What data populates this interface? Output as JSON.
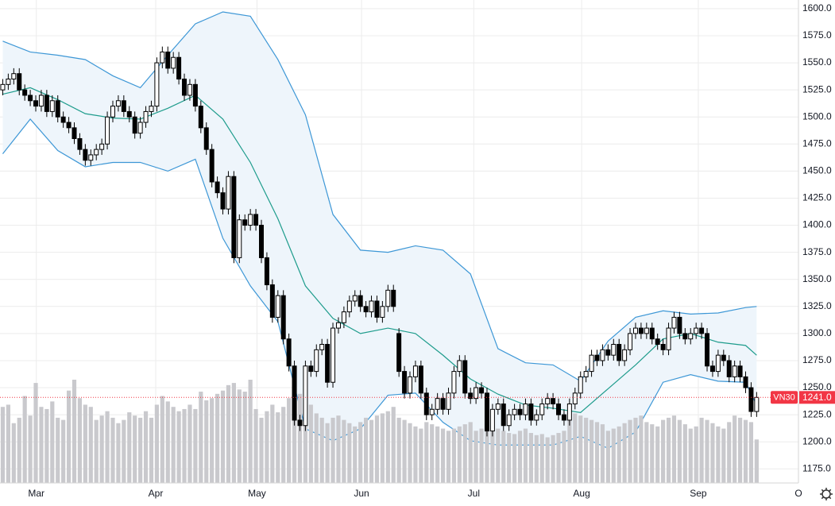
{
  "chart_data": {
    "type": "candlestick",
    "symbol": "VN30",
    "last_price_label": "1241.0",
    "xlim": [
      -0.5,
      144.6
    ],
    "ylim": [
      1162,
      1608
    ],
    "xticks": [
      {
        "value": 6.1,
        "label": "Mar"
      },
      {
        "value": 27.8,
        "label": "Apr"
      },
      {
        "value": 46.2,
        "label": "May"
      },
      {
        "value": 65.2,
        "label": "Jun"
      },
      {
        "value": 85.6,
        "label": "Jul"
      },
      {
        "value": 105.2,
        "label": "Aug"
      },
      {
        "value": 126.4,
        "label": "Sep"
      },
      {
        "value": 144.6,
        "label": "O"
      }
    ],
    "yticks": [
      {
        "value": 1600,
        "label": "1600.0"
      },
      {
        "value": 1575,
        "label": "1575.0"
      },
      {
        "value": 1550,
        "label": "1550.0"
      },
      {
        "value": 1525,
        "label": "1525.0"
      },
      {
        "value": 1500,
        "label": "1500.0"
      },
      {
        "value": 1475,
        "label": "1475.0"
      },
      {
        "value": 1450,
        "label": "1450.0"
      },
      {
        "value": 1425,
        "label": "1425.0"
      },
      {
        "value": 1400,
        "label": "1400.0"
      },
      {
        "value": 1375,
        "label": "1375.0"
      },
      {
        "value": 1350,
        "label": "1350.0"
      },
      {
        "value": 1325,
        "label": "1325.0"
      },
      {
        "value": 1300,
        "label": "1300.0"
      },
      {
        "value": 1275,
        "label": "1275.0"
      },
      {
        "value": 1250,
        "label": "1250.0"
      },
      {
        "value": 1225,
        "label": "1225.0"
      },
      {
        "value": 1200,
        "label": "1200.0"
      },
      {
        "value": 1175,
        "label": "1175.0"
      }
    ],
    "grid": true,
    "up_color": "#ffffff",
    "down_color": "#000000",
    "volume_color": "#c9c9cd",
    "last_price_color": "#f23645",
    "open": [
      1525,
      1530,
      1535,
      1540,
      1525,
      1520,
      1515,
      1510,
      1520,
      1505,
      1515,
      1500,
      1495,
      1490,
      1480,
      1470,
      1460,
      1465,
      1470,
      1475,
      1500,
      1510,
      1515,
      1505,
      1500,
      1485,
      1495,
      1505,
      1510,
      1550,
      1560,
      1545,
      1555,
      1535,
      1520,
      1530,
      1510,
      1490,
      1470,
      1440,
      1430,
      1415,
      1445,
      1370,
      1405,
      1400,
      1410,
      1400,
      1370,
      1345,
      1315,
      1335,
      1295,
      1270,
      1220,
      1215,
      1270,
      1265,
      1285,
      1290,
      1255,
      1305,
      1310,
      1320,
      1330,
      1335,
      1325,
      1320,
      1330,
      1315,
      1325,
      1340,
      1300,
      1265,
      1245,
      1260,
      1270,
      1245,
      1225,
      1230,
      1240,
      1230,
      1245,
      1265,
      1275,
      1245,
      1240,
      1250,
      1245,
      1210,
      1230,
      1235,
      1215,
      1225,
      1230,
      1225,
      1235,
      1220,
      1225,
      1235,
      1240,
      1235,
      1225,
      1220,
      1235,
      1245,
      1260,
      1265,
      1280,
      1275,
      1285,
      1280,
      1290,
      1275,
      1285,
      1300,
      1305,
      1300,
      1305,
      1295,
      1290,
      1285,
      1305,
      1315,
      1300,
      1295,
      1300,
      1305,
      1300,
      1270,
      1265,
      1280,
      1275,
      1260,
      1270,
      1260,
      1250,
      1228
    ],
    "high": [
      1535,
      1540,
      1545,
      1545,
      1530,
      1525,
      1520,
      1525,
      1525,
      1520,
      1520,
      1505,
      1500,
      1495,
      1485,
      1475,
      1470,
      1475,
      1480,
      1505,
      1515,
      1520,
      1520,
      1510,
      1505,
      1500,
      1510,
      1515,
      1555,
      1565,
      1565,
      1560,
      1560,
      1540,
      1535,
      1535,
      1515,
      1495,
      1475,
      1445,
      1435,
      1450,
      1450,
      1410,
      1410,
      1415,
      1415,
      1405,
      1375,
      1350,
      1340,
      1340,
      1300,
      1275,
      1225,
      1275,
      1275,
      1290,
      1295,
      1295,
      1310,
      1315,
      1325,
      1335,
      1340,
      1340,
      1330,
      1335,
      1335,
      1330,
      1345,
      1345,
      1305,
      1270,
      1265,
      1275,
      1275,
      1250,
      1235,
      1245,
      1245,
      1250,
      1270,
      1280,
      1280,
      1250,
      1255,
      1255,
      1250,
      1235,
      1240,
      1240,
      1230,
      1235,
      1235,
      1240,
      1240,
      1230,
      1240,
      1245,
      1245,
      1240,
      1230,
      1240,
      1250,
      1265,
      1270,
      1285,
      1285,
      1290,
      1290,
      1295,
      1295,
      1290,
      1305,
      1310,
      1310,
      1310,
      1310,
      1300,
      1295,
      1310,
      1320,
      1320,
      1305,
      1305,
      1310,
      1310,
      1305,
      1275,
      1285,
      1285,
      1280,
      1275,
      1275,
      1265,
      1255,
      1246
    ],
    "low": [
      1520,
      1525,
      1530,
      1520,
      1515,
      1510,
      1505,
      1505,
      1500,
      1500,
      1495,
      1490,
      1485,
      1475,
      1465,
      1455,
      1455,
      1460,
      1465,
      1470,
      1495,
      1505,
      1500,
      1495,
      1480,
      1480,
      1490,
      1500,
      1505,
      1545,
      1540,
      1540,
      1530,
      1515,
      1515,
      1505,
      1485,
      1465,
      1435,
      1425,
      1410,
      1410,
      1365,
      1365,
      1395,
      1395,
      1395,
      1365,
      1340,
      1310,
      1310,
      1290,
      1265,
      1215,
      1210,
      1210,
      1260,
      1260,
      1280,
      1250,
      1250,
      1300,
      1305,
      1315,
      1325,
      1320,
      1315,
      1315,
      1310,
      1310,
      1320,
      1320,
      1260,
      1240,
      1240,
      1255,
      1240,
      1220,
      1220,
      1225,
      1225,
      1225,
      1240,
      1260,
      1240,
      1235,
      1235,
      1240,
      1205,
      1205,
      1225,
      1210,
      1210,
      1220,
      1220,
      1220,
      1215,
      1215,
      1220,
      1230,
      1230,
      1220,
      1215,
      1215,
      1230,
      1240,
      1255,
      1260,
      1270,
      1270,
      1275,
      1275,
      1270,
      1270,
      1280,
      1295,
      1295,
      1295,
      1290,
      1285,
      1280,
      1280,
      1300,
      1295,
      1290,
      1290,
      1295,
      1295,
      1265,
      1260,
      1260,
      1270,
      1255,
      1255,
      1255,
      1245,
      1223,
      1223
    ],
    "close": [
      1530,
      1535,
      1540,
      1525,
      1520,
      1515,
      1510,
      1520,
      1505,
      1515,
      1500,
      1495,
      1490,
      1480,
      1470,
      1460,
      1465,
      1470,
      1475,
      1500,
      1510,
      1515,
      1505,
      1500,
      1485,
      1495,
      1505,
      1510,
      1550,
      1560,
      1545,
      1555,
      1535,
      1520,
      1530,
      1510,
      1490,
      1470,
      1440,
      1430,
      1415,
      1445,
      1370,
      1405,
      1400,
      1410,
      1400,
      1370,
      1345,
      1315,
      1335,
      1295,
      1270,
      1220,
      1215,
      1270,
      1265,
      1285,
      1290,
      1255,
      1305,
      1310,
      1320,
      1330,
      1335,
      1325,
      1320,
      1330,
      1315,
      1325,
      1340,
      1325,
      1265,
      1245,
      1260,
      1270,
      1245,
      1225,
      1230,
      1240,
      1230,
      1245,
      1265,
      1275,
      1245,
      1240,
      1250,
      1245,
      1210,
      1230,
      1235,
      1215,
      1225,
      1230,
      1225,
      1235,
      1220,
      1225,
      1235,
      1240,
      1235,
      1225,
      1220,
      1235,
      1245,
      1260,
      1265,
      1280,
      1275,
      1285,
      1280,
      1290,
      1275,
      1285,
      1300,
      1305,
      1300,
      1305,
      1295,
      1290,
      1285,
      1305,
      1315,
      1300,
      1295,
      1300,
      1305,
      1300,
      1270,
      1265,
      1280,
      1275,
      1260,
      1270,
      1260,
      1250,
      1228,
      1241
    ],
    "volume": [
      70,
      72,
      55,
      60,
      80,
      62,
      92,
      70,
      68,
      75,
      60,
      58,
      85,
      95,
      78,
      72,
      70,
      58,
      62,
      66,
      60,
      55,
      58,
      65,
      62,
      60,
      66,
      60,
      72,
      80,
      75,
      70,
      66,
      68,
      72,
      68,
      84,
      76,
      78,
      82,
      85,
      90,
      92,
      86,
      84,
      95,
      68,
      60,
      66,
      72,
      65,
      70,
      78,
      88,
      82,
      78,
      72,
      64,
      60,
      55,
      60,
      62,
      58,
      55,
      52,
      56,
      60,
      58,
      62,
      64,
      66,
      70,
      60,
      58,
      55,
      52,
      50,
      56,
      54,
      52,
      50,
      48,
      50,
      52,
      54,
      56,
      48,
      50,
      55,
      52,
      50,
      48,
      46,
      45,
      48,
      50,
      46,
      44,
      45,
      42,
      44,
      46,
      48,
      62,
      64,
      62,
      60,
      58,
      56,
      54,
      48,
      50,
      52,
      55,
      58,
      60,
      62,
      56,
      54,
      52,
      58,
      60,
      62,
      58,
      54,
      50,
      52,
      60,
      58,
      55,
      52,
      50,
      56,
      62,
      60,
      58,
      56,
      40
    ],
    "bands": {
      "x": [
        0,
        5,
        10,
        15,
        20,
        25,
        30,
        35,
        40,
        45,
        50,
        55,
        60,
        65,
        70,
        75,
        80,
        85,
        90,
        95,
        100,
        105,
        110,
        115,
        120,
        125,
        130,
        135,
        137
      ],
      "upper_color": "#3d97d6",
      "middle_color": "#1e9c8c",
      "fill": "#eef5fb",
      "upper": [
        1570,
        1560,
        1557,
        1553,
        1538,
        1527,
        1557,
        1586,
        1597,
        1593,
        1553,
        1502,
        1410,
        1377,
        1375,
        1381,
        1377,
        1355,
        1286,
        1273,
        1271,
        1256,
        1293,
        1315,
        1321,
        1318,
        1319,
        1324,
        1325
      ],
      "middle": [
        1521,
        1527,
        1516,
        1503,
        1499,
        1498,
        1508,
        1520,
        1498,
        1458,
        1406,
        1344,
        1314,
        1300,
        1305,
        1300,
        1280,
        1258,
        1244,
        1234,
        1231,
        1227,
        1249,
        1271,
        1295,
        1300,
        1292,
        1289,
        1280
      ],
      "lower": [
        1466,
        1498,
        1469,
        1454,
        1458,
        1458,
        1450,
        1461,
        1388,
        1344,
        1311,
        1212,
        1201,
        1212,
        1243,
        1245,
        1218,
        1201,
        1197,
        1197,
        1197,
        1205,
        1194,
        1209,
        1255,
        1262,
        1256,
        1255,
        1234
      ]
    }
  }
}
